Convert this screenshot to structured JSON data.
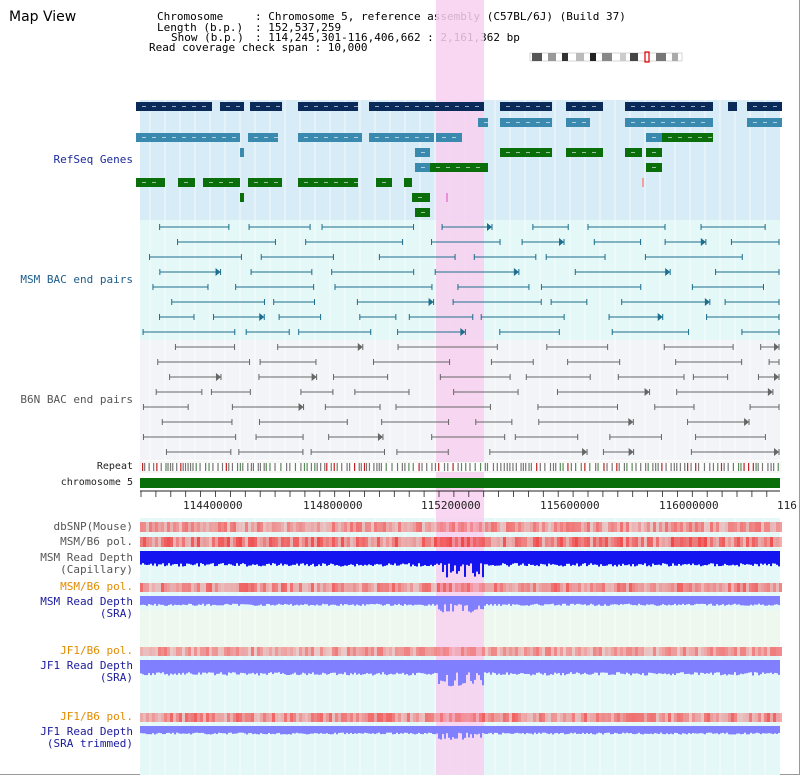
{
  "map_view": {
    "title": "Map View",
    "info": {
      "chromosome_key": "Chromosome",
      "chromosome_value": ": Chromosome 5, reference assembly (C57BL/6J) (Build 37)",
      "length_key": "Length (b.p.)",
      "length_value": ": 152,537,259",
      "show_key": "Show (b.p.)",
      "show_value": ": 114,245,301-116,406,662 : 2,161,362 bp",
      "coverage_line": "Read coverage check span : 10,000"
    }
  },
  "tracks": {
    "refseq": "RefSeq Genes",
    "msm_bac": "MSM BAC end pairs",
    "b6n_bac": "B6N BAC end pairs",
    "repeat": "Repeat",
    "chromosome": "chromosome 5",
    "dbsnp": "dbSNP(Mouse)",
    "msm_b6_pol_1": "MSM/B6 pol.",
    "msm_read_depth_cap_1": "MSM Read Depth",
    "msm_read_depth_cap_2": "(Capillary)",
    "msm_b6_pol_2": "MSM/B6 pol.",
    "msm_read_depth_sra_1": "MSM Read Depth",
    "msm_read_depth_sra_2": "(SRA)",
    "jf1_b6_pol_1": "JF1/B6 pol.",
    "jf1_read_depth_sra_1": "JF1 Read Depth",
    "jf1_read_depth_sra_2": "(SRA)",
    "jf1_b6_pol_2": "JF1/B6 pol.",
    "jf1_read_depth_trim_1": "JF1 Read Depth",
    "jf1_read_depth_trim_2": "(SRA trimmed)"
  },
  "axis": {
    "ticks": [
      "114400000",
      "114800000",
      "115200000",
      "115600000",
      "116000000",
      "116"
    ]
  },
  "colors": {
    "refseq_bg": "#d8ecf8",
    "msm_bac_bg": "#e4f8f8",
    "b6n_bac_bg": "#f2f4f8",
    "highlight": "#f8d0f0",
    "chromosome_bar": "#0a6e0a",
    "gene_dark": "#0a2a5a",
    "gene_mid": "#3a8ab0",
    "gene_green": "#0a6e0a",
    "msm_line": "#1d6d8c",
    "b6n_line": "#666666",
    "depth_blue": "#1010ff",
    "depth_light": "#8080ff",
    "pol_red": "#f06060"
  }
}
